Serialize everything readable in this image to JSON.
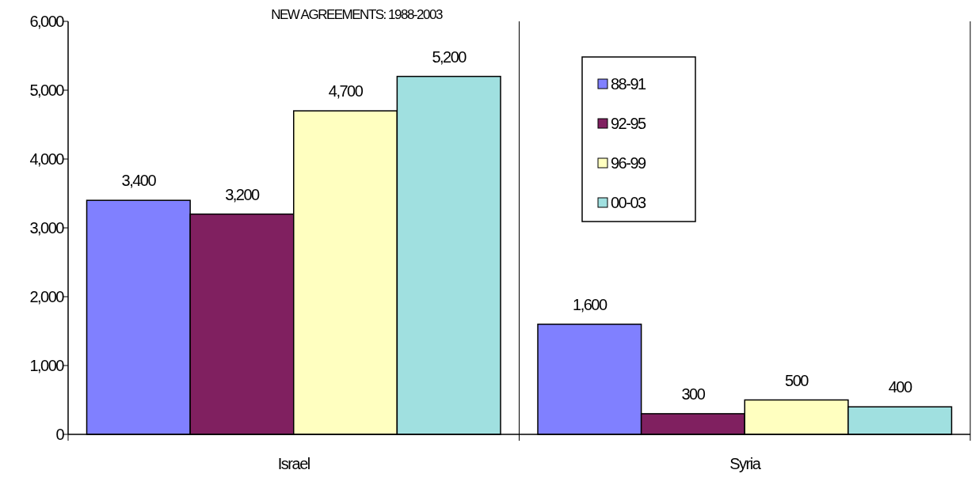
{
  "chart_data": {
    "type": "bar",
    "title": "NEW AGREEMENTS: 1988-2003",
    "categories": [
      "Israel",
      "Syria"
    ],
    "series": [
      {
        "name": "88-91",
        "color": "#8080ff",
        "values": [
          3400,
          1600
        ],
        "value_labels": [
          "3,400",
          "1,600"
        ]
      },
      {
        "name": "92-95",
        "color": "#802060",
        "values": [
          3200,
          300
        ],
        "value_labels": [
          "3,200",
          "300"
        ]
      },
      {
        "name": "96-99",
        "color": "#ffffc0",
        "values": [
          4700,
          500
        ],
        "value_labels": [
          "4,700",
          "500"
        ]
      },
      {
        "name": "00-03",
        "color": "#a0e0e0",
        "values": [
          5200,
          400
        ],
        "value_labels": [
          "5,200",
          "400"
        ]
      }
    ],
    "ylim": [
      0,
      6000
    ],
    "yticks": [
      {
        "value": 0,
        "label": "0"
      },
      {
        "value": 1000,
        "label": "1,000"
      },
      {
        "value": 2000,
        "label": "2,000"
      },
      {
        "value": 3000,
        "label": "3,000"
      },
      {
        "value": 4000,
        "label": "4,000"
      },
      {
        "value": 5000,
        "label": "5,000"
      },
      {
        "value": 6000,
        "label": "6,000"
      }
    ],
    "grid": "x",
    "legend": "top right"
  }
}
